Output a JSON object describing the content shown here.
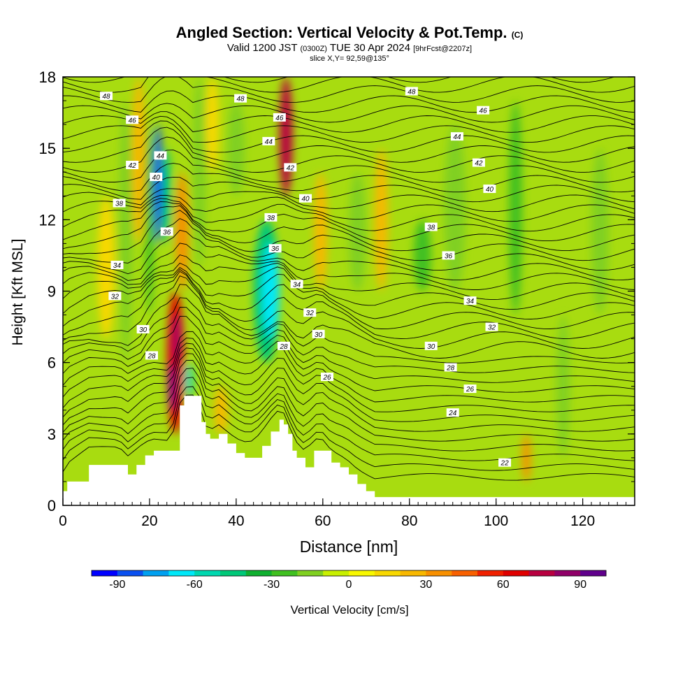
{
  "title": {
    "main": "Angled Section: Vertical Velocity & Pot.Temp.",
    "main_suffix": "(C)",
    "line2_a": "Valid 1200 JST",
    "line2_b": "(0300Z)",
    "line2_c": "TUE 30 Apr 2024",
    "line2_d": "[9hrFcst@2207z]",
    "line3": "slice X,Y= 92,59@135°"
  },
  "chart_data": {
    "type": "heatmap",
    "xlabel": "Distance [nm]",
    "ylabel": "Height [Kft MSL]",
    "xlim": [
      0,
      132
    ],
    "ylim": [
      0,
      18
    ],
    "xticks": [
      0,
      20,
      40,
      60,
      80,
      100,
      120
    ],
    "yticks": [
      0,
      3,
      6,
      9,
      12,
      15,
      18
    ],
    "colorbar": {
      "label": "Vertical Velocity [cm/s]",
      "tick_values": [
        -90,
        -60,
        -30,
        0,
        30,
        60,
        90
      ],
      "colors": [
        "#0000ff",
        "#0a50f0",
        "#00a0f0",
        "#00e8f8",
        "#00d8b0",
        "#00c878",
        "#10b030",
        "#40c020",
        "#80d020",
        "#c8f000",
        "#f8f800",
        "#f8d800",
        "#f8b800",
        "#f89000",
        "#f86000",
        "#f02000",
        "#e00000",
        "#b80040",
        "#900068",
        "#60008c"
      ]
    },
    "cells": [
      {
        "x": [
          8,
          12
        ],
        "y": [
          7,
          13
        ],
        "v": 15
      },
      {
        "x": [
          13,
          16
        ],
        "y": [
          6,
          17
        ],
        "v": -15
      },
      {
        "x": [
          16,
          19
        ],
        "y": [
          11,
          18
        ],
        "v": 20
      },
      {
        "x": [
          19,
          21
        ],
        "y": [
          8,
          16
        ],
        "v": -25
      },
      {
        "x": [
          21,
          23
        ],
        "y": [
          11,
          16
        ],
        "v": -85
      },
      {
        "x": [
          23,
          25
        ],
        "y": [
          11,
          15
        ],
        "v": -50
      },
      {
        "x": [
          24,
          28
        ],
        "y": [
          3,
          9
        ],
        "v": 60
      },
      {
        "x": [
          24.5,
          26
        ],
        "y": [
          4,
          6
        ],
        "v": 100
      },
      {
        "x": [
          25.5,
          27
        ],
        "y": [
          6,
          8
        ],
        "v": 80
      },
      {
        "x": [
          26,
          29
        ],
        "y": [
          9,
          14
        ],
        "v": 30
      },
      {
        "x": [
          28,
          30
        ],
        "y": [
          4.5,
          6
        ],
        "v": -60
      },
      {
        "x": [
          30,
          33
        ],
        "y": [
          10,
          18
        ],
        "v": -20
      },
      {
        "x": [
          33,
          36
        ],
        "y": [
          14,
          18
        ],
        "v": 15
      },
      {
        "x": [
          35,
          38
        ],
        "y": [
          3,
          5
        ],
        "v": 25
      },
      {
        "x": [
          38,
          42
        ],
        "y": [
          13,
          17
        ],
        "v": -20
      },
      {
        "x": [
          44,
          50
        ],
        "y": [
          6,
          12
        ],
        "v": -50
      },
      {
        "x": [
          46,
          50
        ],
        "y": [
          7,
          11
        ],
        "v": -65
      },
      {
        "x": [
          50,
          53
        ],
        "y": [
          13,
          18
        ],
        "v": 70
      },
      {
        "x": [
          58,
          61
        ],
        "y": [
          9,
          14
        ],
        "v": 20
      },
      {
        "x": [
          66,
          70
        ],
        "y": [
          9,
          14
        ],
        "v": -20
      },
      {
        "x": [
          72,
          75
        ],
        "y": [
          9,
          15
        ],
        "v": 20
      },
      {
        "x": [
          81,
          85
        ],
        "y": [
          9,
          12
        ],
        "v": -30
      },
      {
        "x": [
          88,
          93
        ],
        "y": [
          9,
          16
        ],
        "v": -20
      },
      {
        "x": [
          103,
          106
        ],
        "y": [
          8,
          17
        ],
        "v": -25
      },
      {
        "x": [
          106,
          108
        ],
        "y": [
          1,
          3
        ],
        "v": 30
      },
      {
        "x": [
          114,
          117
        ],
        "y": [
          2,
          8
        ],
        "v": -20
      },
      {
        "x": [
          122,
          126
        ],
        "y": [
          8,
          15
        ],
        "v": -20
      }
    ],
    "contour_labels": [
      {
        "v": "48",
        "x": 10,
        "y": 17.2
      },
      {
        "v": "46",
        "x": 16,
        "y": 16.2
      },
      {
        "v": "44",
        "x": 22.5,
        "y": 14.7
      },
      {
        "v": "42",
        "x": 16,
        "y": 14.3
      },
      {
        "v": "40",
        "x": 21.5,
        "y": 13.8
      },
      {
        "v": "38",
        "x": 13,
        "y": 12.7
      },
      {
        "v": "36",
        "x": 24,
        "y": 11.5
      },
      {
        "v": "34",
        "x": 12.5,
        "y": 10.1
      },
      {
        "v": "32",
        "x": 12,
        "y": 8.8
      },
      {
        "v": "30",
        "x": 18.5,
        "y": 7.4
      },
      {
        "v": "28",
        "x": 20.5,
        "y": 6.3
      },
      {
        "v": "48",
        "x": 41,
        "y": 17.1
      },
      {
        "v": "46",
        "x": 50,
        "y": 16.3
      },
      {
        "v": "44",
        "x": 47.5,
        "y": 15.3
      },
      {
        "v": "42",
        "x": 52.5,
        "y": 14.2
      },
      {
        "v": "40",
        "x": 56,
        "y": 12.9
      },
      {
        "v": "38",
        "x": 48,
        "y": 12.1
      },
      {
        "v": "36",
        "x": 49,
        "y": 10.8
      },
      {
        "v": "34",
        "x": 54,
        "y": 9.3
      },
      {
        "v": "32",
        "x": 57,
        "y": 8.1
      },
      {
        "v": "30",
        "x": 59,
        "y": 7.2
      },
      {
        "v": "28",
        "x": 51,
        "y": 6.7
      },
      {
        "v": "26",
        "x": 61,
        "y": 5.4
      },
      {
        "v": "48",
        "x": 80.5,
        "y": 17.4
      },
      {
        "v": "46",
        "x": 97,
        "y": 16.6
      },
      {
        "v": "44",
        "x": 91,
        "y": 15.5
      },
      {
        "v": "42",
        "x": 96,
        "y": 14.4
      },
      {
        "v": "40",
        "x": 98.5,
        "y": 13.3
      },
      {
        "v": "38",
        "x": 85,
        "y": 11.7
      },
      {
        "v": "36",
        "x": 89,
        "y": 10.5
      },
      {
        "v": "34",
        "x": 94,
        "y": 8.6
      },
      {
        "v": "32",
        "x": 99,
        "y": 7.5
      },
      {
        "v": "30",
        "x": 85,
        "y": 6.7
      },
      {
        "v": "28",
        "x": 89.5,
        "y": 5.8
      },
      {
        "v": "26",
        "x": 94,
        "y": 4.9
      },
      {
        "v": "24",
        "x": 90,
        "y": 3.9
      },
      {
        "v": "22",
        "x": 102,
        "y": 1.8
      }
    ],
    "terrain": [
      [
        0,
        0.6
      ],
      [
        1,
        1.0
      ],
      [
        6,
        1.7
      ],
      [
        11,
        1.7
      ],
      [
        13,
        1.7
      ],
      [
        15,
        1.3
      ],
      [
        17,
        1.7
      ],
      [
        19,
        2.1
      ],
      [
        21,
        2.3
      ],
      [
        23,
        2.3
      ],
      [
        25,
        2.3
      ],
      [
        27,
        4.2
      ],
      [
        28,
        4.6
      ],
      [
        31,
        4.6
      ],
      [
        32,
        3.5
      ],
      [
        33,
        3.0
      ],
      [
        34,
        2.8
      ],
      [
        36,
        3.0
      ],
      [
        38,
        2.6
      ],
      [
        40,
        2.2
      ],
      [
        42,
        2.0
      ],
      [
        44,
        2.0
      ],
      [
        46,
        2.5
      ],
      [
        48,
        3.1
      ],
      [
        50,
        3.6
      ],
      [
        51,
        3.4
      ],
      [
        52,
        3.0
      ],
      [
        53,
        2.3
      ],
      [
        54,
        2.0
      ],
      [
        56,
        1.6
      ],
      [
        58,
        2.3
      ],
      [
        60,
        2.3
      ],
      [
        62,
        1.8
      ],
      [
        64,
        1.6
      ],
      [
        66,
        1.3
      ],
      [
        68,
        0.9
      ],
      [
        70,
        0.6
      ],
      [
        72,
        0.35
      ],
      [
        132,
        0.35
      ]
    ]
  }
}
